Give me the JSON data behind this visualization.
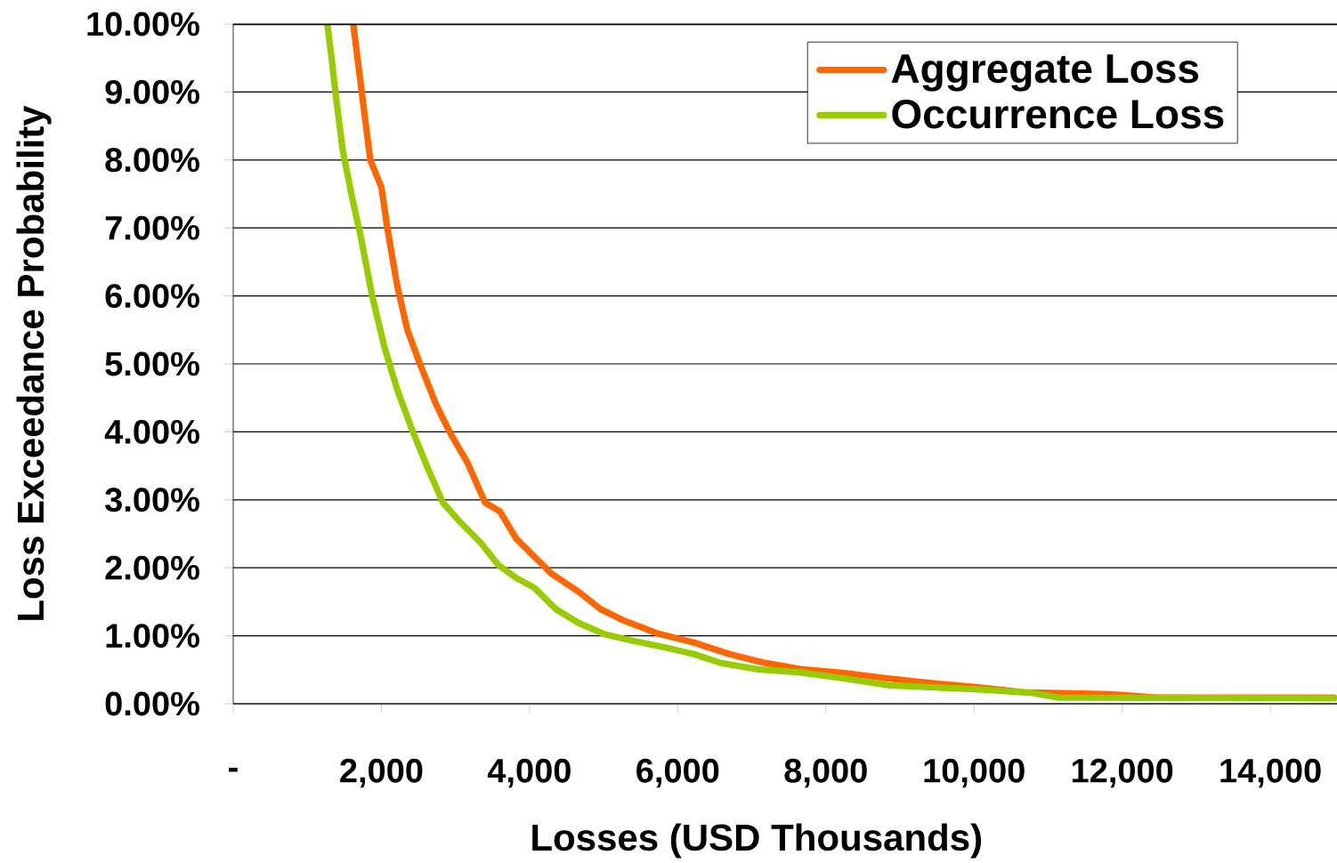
{
  "chart_data": {
    "type": "line",
    "xlabel": "Losses (USD Thousands)",
    "ylabel": "Loss Exceedance Probability",
    "xlim": [
      0,
      14900
    ],
    "ylim": [
      0,
      10
    ],
    "xticks": [
      {
        "value": 0,
        "label": "-"
      },
      {
        "value": 2000,
        "label": "2,000"
      },
      {
        "value": 4000,
        "label": "4,000"
      },
      {
        "value": 6000,
        "label": "6,000"
      },
      {
        "value": 8000,
        "label": "8,000"
      },
      {
        "value": 10000,
        "label": "10,000"
      },
      {
        "value": 12000,
        "label": "12,000"
      },
      {
        "value": 14000,
        "label": "14,000"
      }
    ],
    "yticks": [
      {
        "value": 0,
        "label": "0.00%"
      },
      {
        "value": 1,
        "label": "1.00%"
      },
      {
        "value": 2,
        "label": "2.00%"
      },
      {
        "value": 3,
        "label": "3.00%"
      },
      {
        "value": 4,
        "label": "4.00%"
      },
      {
        "value": 5,
        "label": "5.00%"
      },
      {
        "value": 6,
        "label": "6.00%"
      },
      {
        "value": 7,
        "label": "7.00%"
      },
      {
        "value": 8,
        "label": "8.00%"
      },
      {
        "value": 9,
        "label": "9.00%"
      },
      {
        "value": 10,
        "label": "10.00%"
      }
    ],
    "grid": "y",
    "legend": "top right",
    "line_style": "solid",
    "series": [
      {
        "name": "Aggregate Loss",
        "color": "#ff6600",
        "x": [
          1620,
          1700,
          1850,
          2000,
          2080,
          2210,
          2350,
          2520,
          2740,
          2920,
          3160,
          3400,
          3600,
          3820,
          4060,
          4300,
          4660,
          4960,
          5260,
          5740,
          6220,
          6700,
          7180,
          7660,
          8260,
          8860,
          9460,
          10060,
          10660,
          11860,
          12460,
          14860
        ],
        "values": [
          10.0,
          9.3,
          8.0,
          7.6,
          7.0,
          6.17,
          5.5,
          5.0,
          4.4,
          4.0,
          3.55,
          2.96,
          2.83,
          2.43,
          2.17,
          1.91,
          1.65,
          1.39,
          1.23,
          1.03,
          0.9,
          0.73,
          0.6,
          0.51,
          0.45,
          0.37,
          0.3,
          0.24,
          0.17,
          0.14,
          0.09,
          0.09
        ]
      },
      {
        "name": "Occurrence Loss",
        "color": "#99cc00",
        "x": [
          1270,
          1320,
          1390,
          1480,
          1600,
          1720,
          1870,
          2040,
          2220,
          2400,
          2620,
          2830,
          3040,
          3340,
          3580,
          3820,
          4060,
          4360,
          4660,
          5020,
          5380,
          5860,
          6220,
          6580,
          7060,
          7660,
          8260,
          8860,
          9460,
          10060,
          10780,
          11140,
          14860
        ],
        "values": [
          10.0,
          9.57,
          8.9,
          8.13,
          7.47,
          6.88,
          6.03,
          5.25,
          4.6,
          4.07,
          3.48,
          2.96,
          2.7,
          2.37,
          2.04,
          1.85,
          1.71,
          1.39,
          1.19,
          1.02,
          0.93,
          0.82,
          0.73,
          0.6,
          0.51,
          0.46,
          0.37,
          0.27,
          0.24,
          0.21,
          0.16,
          0.09,
          0.08
        ]
      }
    ]
  }
}
